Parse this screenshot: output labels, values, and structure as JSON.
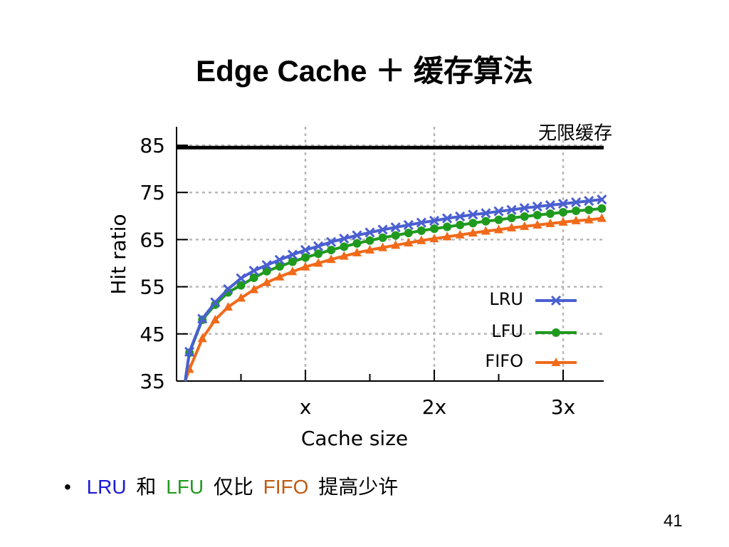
{
  "slide": {
    "title": "Edge Cache ＋ 缓存算法",
    "page_number": "41"
  },
  "bullet": {
    "marker": "•",
    "parts": [
      {
        "text": "LRU",
        "color": "#1a1ad6"
      },
      {
        "text": "和",
        "color": "#000000"
      },
      {
        "text": "LFU",
        "color": "#1f9a1f"
      },
      {
        "text": "仅比",
        "color": "#000000"
      },
      {
        "text": "FIFO",
        "color": "#c05a14"
      },
      {
        "text": "提高少许",
        "color": "#000000"
      }
    ]
  },
  "chart_data": {
    "type": "line",
    "xlabel": "Cache size",
    "ylabel": "Hit ratio",
    "ylim": [
      35,
      90
    ],
    "yticks": [
      35,
      45,
      55,
      65,
      75,
      85
    ],
    "xticks": [
      {
        "x": 1,
        "label": "x"
      },
      {
        "x": 2,
        "label": "2x"
      },
      {
        "x": 3,
        "label": "3x"
      }
    ],
    "xlim": [
      0,
      3.3
    ],
    "grid": true,
    "legend_position": "bottom-right",
    "reference_line": {
      "label": "无限缓存",
      "y": 84.5,
      "color": "#000000"
    },
    "x": [
      0.1,
      0.2,
      0.3,
      0.4,
      0.5,
      0.6,
      0.7,
      0.8,
      0.9,
      1.0,
      1.1,
      1.2,
      1.3,
      1.4,
      1.5,
      1.6,
      1.7,
      1.8,
      1.9,
      2.0,
      2.1,
      2.2,
      2.3,
      2.4,
      2.5,
      2.6,
      2.7,
      2.8,
      2.9,
      3.0,
      3.1,
      3.2,
      3.3
    ],
    "series": [
      {
        "name": "LRU",
        "color": "#4a5fd0",
        "marker": "x",
        "values": [
          41.2,
          48.2,
          51.7,
          54.5,
          56.8,
          58.4,
          59.6,
          60.7,
          61.8,
          62.8,
          63.6,
          64.5,
          65.2,
          65.9,
          66.5,
          67.1,
          67.6,
          68.1,
          68.6,
          69.0,
          69.5,
          69.9,
          70.3,
          70.6,
          71.0,
          71.3,
          71.7,
          72.0,
          72.3,
          72.6,
          72.9,
          73.2,
          73.5
        ]
      },
      {
        "name": "LFU",
        "color": "#1f9a1f",
        "marker": "circle",
        "values": [
          41.0,
          48.0,
          51.2,
          53.8,
          55.3,
          56.9,
          58.3,
          59.3,
          60.3,
          61.2,
          62.0,
          62.8,
          63.5,
          64.2,
          64.8,
          65.4,
          65.9,
          66.4,
          66.9,
          67.3,
          67.7,
          68.1,
          68.5,
          68.9,
          69.2,
          69.6,
          69.9,
          70.2,
          70.5,
          70.8,
          71.1,
          71.3,
          71.6
        ]
      },
      {
        "name": "FIFO",
        "color": "#f06a1a",
        "marker": "triangle",
        "values": [
          37.5,
          44.0,
          48.0,
          50.7,
          52.6,
          54.4,
          55.9,
          57.1,
          58.2,
          59.2,
          60.0,
          60.8,
          61.5,
          62.2,
          62.8,
          63.3,
          63.8,
          64.3,
          64.8,
          65.2,
          65.6,
          66.0,
          66.4,
          66.8,
          67.1,
          67.5,
          67.8,
          68.1,
          68.4,
          68.7,
          69.0,
          69.2,
          69.5
        ]
      }
    ]
  }
}
